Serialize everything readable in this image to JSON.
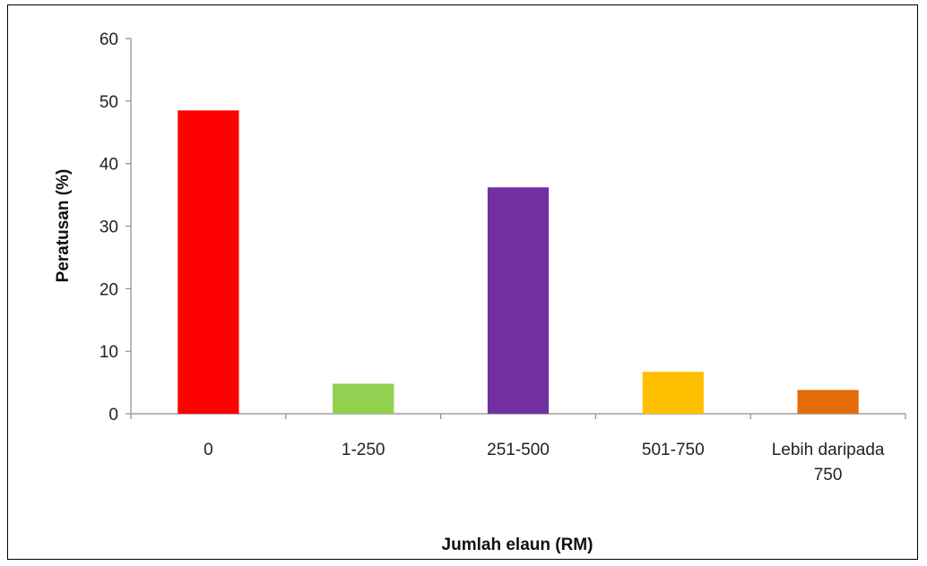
{
  "chart_data": {
    "type": "bar",
    "title": "",
    "xlabel": "Jumlah elaun (RM)",
    "ylabel": "Peratusan (%)",
    "ylim": [
      0,
      60
    ],
    "yticks": [
      0,
      10,
      20,
      30,
      40,
      50,
      60
    ],
    "grid": false,
    "legend": "none",
    "categories": [
      [
        "0"
      ],
      [
        "1-250"
      ],
      [
        "251-500"
      ],
      [
        "501-750"
      ],
      [
        "Lebih daripada",
        "750"
      ]
    ],
    "values": [
      48.5,
      4.8,
      36.2,
      6.7,
      3.8
    ],
    "colors": [
      "#ff0000",
      "#92d050",
      "#7030a0",
      "#ffc000",
      "#e46c0a"
    ]
  }
}
